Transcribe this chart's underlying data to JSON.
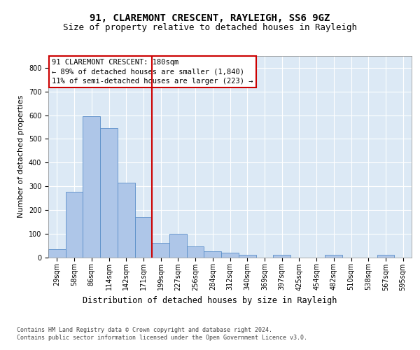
{
  "title": "91, CLAREMONT CRESCENT, RAYLEIGH, SS6 9GZ",
  "subtitle": "Size of property relative to detached houses in Rayleigh",
  "xlabel": "Distribution of detached houses by size in Rayleigh",
  "ylabel": "Number of detached properties",
  "bar_labels": [
    "29sqm",
    "58sqm",
    "86sqm",
    "114sqm",
    "142sqm",
    "171sqm",
    "199sqm",
    "227sqm",
    "256sqm",
    "284sqm",
    "312sqm",
    "340sqm",
    "369sqm",
    "397sqm",
    "425sqm",
    "454sqm",
    "482sqm",
    "510sqm",
    "538sqm",
    "567sqm",
    "595sqm"
  ],
  "bar_values": [
    35,
    275,
    595,
    545,
    315,
    170,
    60,
    100,
    45,
    25,
    20,
    10,
    0,
    10,
    0,
    0,
    10,
    0,
    0,
    10,
    0
  ],
  "bar_color": "#aec6e8",
  "bar_edge_color": "#5b8fc9",
  "vline_color": "#cc0000",
  "annotation_text": "91 CLAREMONT CRESCENT: 180sqm\n← 89% of detached houses are smaller (1,840)\n11% of semi-detached houses are larger (223) →",
  "annotation_box_color": "#ffffff",
  "annotation_box_edge": "#cc0000",
  "ylim": [
    0,
    850
  ],
  "yticks": [
    0,
    100,
    200,
    300,
    400,
    500,
    600,
    700,
    800
  ],
  "background_color": "#dce9f5",
  "plot_bg_color": "#dce9f5",
  "footer": "Contains HM Land Registry data © Crown copyright and database right 2024.\nContains public sector information licensed under the Open Government Licence v3.0.",
  "title_fontsize": 10,
  "subtitle_fontsize": 9,
  "xlabel_fontsize": 8.5,
  "ylabel_fontsize": 8,
  "tick_fontsize": 7,
  "footer_fontsize": 6,
  "annotation_fontsize": 7.5
}
